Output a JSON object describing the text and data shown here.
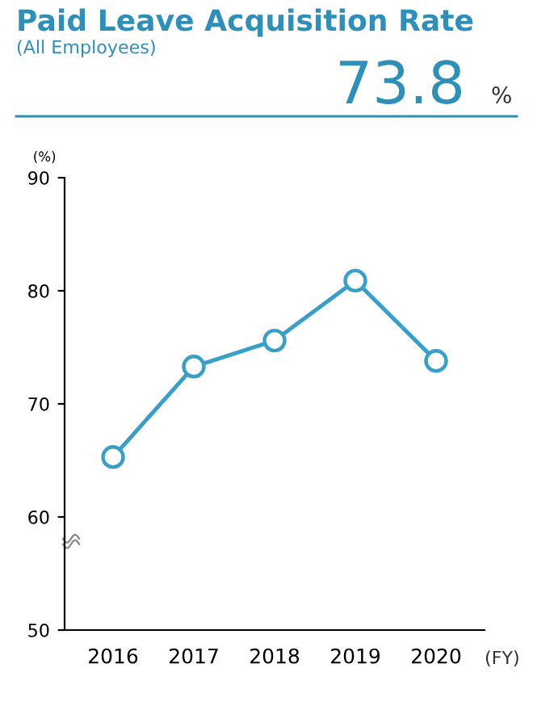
{
  "chart_data": {
    "type": "line",
    "title": "Paid Leave Acquisition Rate",
    "subtitle": "(All Employees)",
    "annotations": [
      "73.8",
      "%"
    ],
    "xlabel": "(FY)",
    "ylabel": "(%)",
    "categories": [
      "2016",
      "2017",
      "2018",
      "2019",
      "2020"
    ],
    "series": [
      {
        "color": "#3a9fc8",
        "values": [
          65.3,
          73.3,
          75.6,
          80.9,
          73.8
        ]
      }
    ],
    "ylim": [
      50,
      90
    ],
    "yticks": [
      50,
      60,
      70,
      80,
      90
    ],
    "grid": false,
    "legend": false,
    "marker": "circle",
    "line_style": "solid"
  }
}
